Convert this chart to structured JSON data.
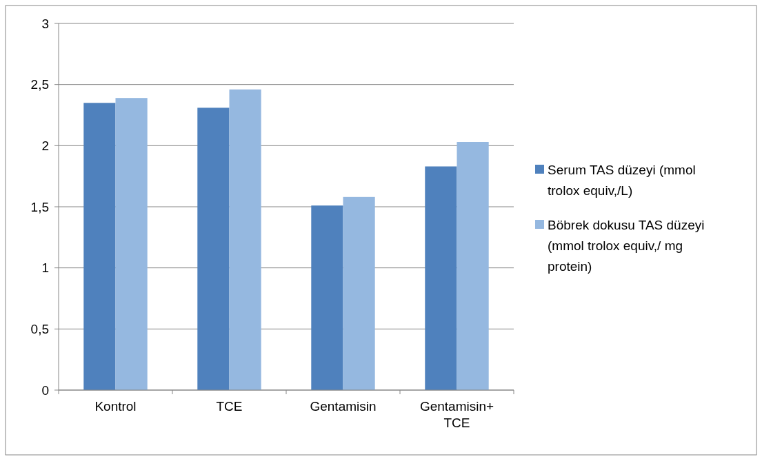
{
  "chart_data": {
    "type": "bar",
    "categories": [
      "Kontrol",
      "TCE",
      "Gentamisin",
      "Gentamisin+ TCE"
    ],
    "series": [
      {
        "name": "Serum TAS düzeyi (mmol trolox equiv,/L)",
        "color": "#4f81bd",
        "values": [
          2.35,
          2.31,
          1.51,
          1.83
        ]
      },
      {
        "name": "Böbrek dokusu TAS düzeyi (mmol trolox equiv,/ mg protein)",
        "color": "#95b8e0",
        "values": [
          2.39,
          2.46,
          1.58,
          2.03
        ]
      }
    ],
    "ylim": [
      0,
      3
    ],
    "yticks": [
      0,
      {
        "value": 0.5,
        "label": "0,5"
      },
      1,
      {
        "value": 1.5,
        "label": "1,5"
      },
      2,
      {
        "value": 2.5,
        "label": "2,5"
      },
      3
    ],
    "grid": "y",
    "legend": "right"
  }
}
